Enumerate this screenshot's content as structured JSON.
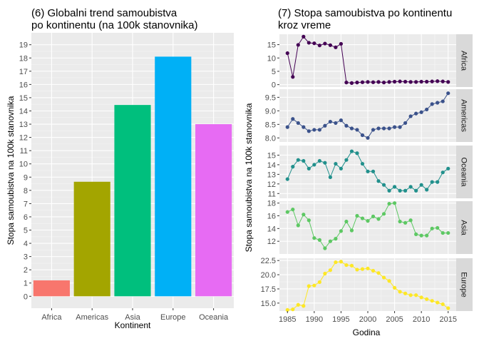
{
  "chart_data": [
    {
      "type": "bar",
      "title_line1": "(6) Globalni trend samoubistva",
      "title_line2": "po kontinentu (na 100k stanovnika)",
      "xlabel": "Kontinent",
      "ylabel": "Stopa samoubistva na 100k stanovnika",
      "categories": [
        "Africa",
        "Americas",
        "Asia",
        "Europe",
        "Oceania"
      ],
      "values": [
        1.2,
        8.65,
        14.45,
        18.1,
        13.0
      ],
      "colors": [
        "#F8766D",
        "#A3A500",
        "#00BF7D",
        "#00B0F6",
        "#E76BF3"
      ],
      "ylim": [
        -0.9,
        19.9
      ],
      "yticks": [
        0,
        1,
        2,
        3,
        4,
        5,
        6,
        7,
        8,
        9,
        10,
        11,
        12,
        13,
        14,
        15,
        16,
        17,
        18,
        19
      ],
      "grid": true,
      "legend": "none"
    },
    {
      "type": "line",
      "title_line1": "(7) Stopa samoubistva po kontinentu",
      "title_line2": "kroz vreme",
      "xlabel": "Godina",
      "ylabel": "Stopa samoubistva na 100k stanovnika",
      "x": [
        1985,
        1986,
        1987,
        1988,
        1989,
        1990,
        1991,
        1992,
        1993,
        1994,
        1995,
        1996,
        1997,
        1998,
        1999,
        2000,
        2001,
        2002,
        2003,
        2004,
        2005,
        2006,
        2007,
        2008,
        2009,
        2010,
        2011,
        2012,
        2013,
        2014,
        2015
      ],
      "xticks": [
        1985,
        1990,
        1995,
        2000,
        2005,
        2010,
        2015
      ],
      "xlim": [
        1983.5,
        2016.5
      ],
      "grid": true,
      "legend": "none",
      "panels": [
        {
          "name": "Africa",
          "color": "#440154",
          "ylim": [
            -0.9,
            18.9
          ],
          "yticks": [
            0,
            5,
            10,
            15
          ],
          "values": [
            11.8,
            2.9,
            14.9,
            18.0,
            15.7,
            15.5,
            14.7,
            15.4,
            14.8,
            14.0,
            15.3,
            0.8,
            0.6,
            0.8,
            0.9,
            1.0,
            0.9,
            1.0,
            0.8,
            1.0,
            1.1,
            1.2,
            1.1,
            1.0,
            1.0,
            1.1,
            1.1,
            1.2,
            1.3,
            1.2,
            1.0
          ]
        },
        {
          "name": "Americas",
          "color": "#3B528B",
          "ylim": [
            7.85,
            9.8
          ],
          "yticks": [
            8.0,
            8.5,
            9.0,
            9.5
          ],
          "values": [
            8.4,
            8.7,
            8.55,
            8.4,
            8.25,
            8.3,
            8.3,
            8.45,
            8.6,
            8.55,
            8.65,
            8.45,
            8.35,
            8.3,
            8.1,
            8.0,
            8.3,
            8.35,
            8.35,
            8.35,
            8.4,
            8.4,
            8.55,
            8.8,
            8.9,
            8.95,
            9.05,
            9.25,
            9.3,
            9.35,
            9.65
          ]
        },
        {
          "name": "Oceania",
          "color": "#21908C",
          "ylim": [
            10.5,
            16.0
          ],
          "yticks": [
            11,
            12,
            13,
            14,
            15
          ],
          "values": [
            12.5,
            13.8,
            14.5,
            14.4,
            13.6,
            14.0,
            14.4,
            14.2,
            12.7,
            14.1,
            13.6,
            14.5,
            15.4,
            15.2,
            14.1,
            13.3,
            13.3,
            12.3,
            11.9,
            11.3,
            11.7,
            11.3,
            11.3,
            11.7,
            11.3,
            11.9,
            11.4,
            12.2,
            12.2,
            13.2,
            13.6
          ]
        },
        {
          "name": "Asia",
          "color": "#5DC863",
          "ylim": [
            10.0,
            18.3
          ],
          "yticks": [
            12,
            14,
            16,
            18
          ],
          "values": [
            16.6,
            17.0,
            14.5,
            16.2,
            15.3,
            12.5,
            12.2,
            10.9,
            12.0,
            12.4,
            13.6,
            15.1,
            13.7,
            16.0,
            15.6,
            15.2,
            15.9,
            15.5,
            16.3,
            17.9,
            18.0,
            15.1,
            14.9,
            15.3,
            13.1,
            12.9,
            12.9,
            14.0,
            14.1,
            13.3,
            13.3
          ]
        },
        {
          "name": "Europe",
          "color": "#FDE725",
          "ylim": [
            13.6,
            22.9
          ],
          "yticks": [
            15.0,
            17.5,
            20.0,
            22.5
          ],
          "values": [
            13.8,
            13.9,
            14.7,
            14.5,
            18.0,
            18.1,
            18.7,
            20.2,
            20.8,
            22.2,
            22.3,
            21.7,
            21.6,
            20.9,
            21.0,
            21.1,
            20.7,
            20.3,
            19.5,
            18.9,
            17.7,
            17.0,
            16.7,
            16.4,
            16.4,
            16.0,
            15.7,
            15.4,
            15.1,
            14.8,
            14.1
          ]
        }
      ]
    }
  ]
}
